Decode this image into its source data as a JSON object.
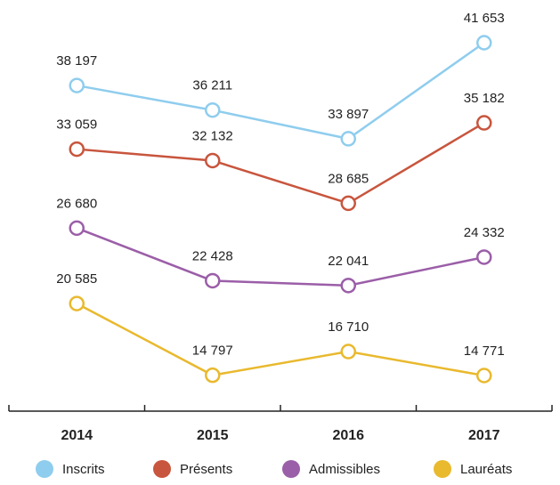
{
  "chart_data": {
    "type": "line",
    "categories": [
      "2014",
      "2015",
      "2016",
      "2017"
    ],
    "series": [
      {
        "name": "Inscrits",
        "color": "#8fcdee",
        "values": [
          38197,
          36211,
          33897,
          41653
        ],
        "value_labels": [
          "38 197",
          "36 211",
          "33 897",
          "41 653"
        ]
      },
      {
        "name": "Présents",
        "color": "#c8553d",
        "values": [
          33059,
          32132,
          28685,
          35182
        ],
        "value_labels": [
          "33 059",
          "32 132",
          "28 685",
          "35 182"
        ]
      },
      {
        "name": "Admissibles",
        "color": "#9b5ea8",
        "values": [
          26680,
          22428,
          22041,
          24332
        ],
        "value_labels": [
          "26 680",
          "22 428",
          "22 041",
          "24 332"
        ]
      },
      {
        "name": "Lauréats",
        "color": "#e9b92e",
        "values": [
          20585,
          14797,
          16710,
          14771
        ],
        "value_labels": [
          "20 585",
          "14 797",
          "16 710",
          "14 771"
        ]
      }
    ]
  }
}
